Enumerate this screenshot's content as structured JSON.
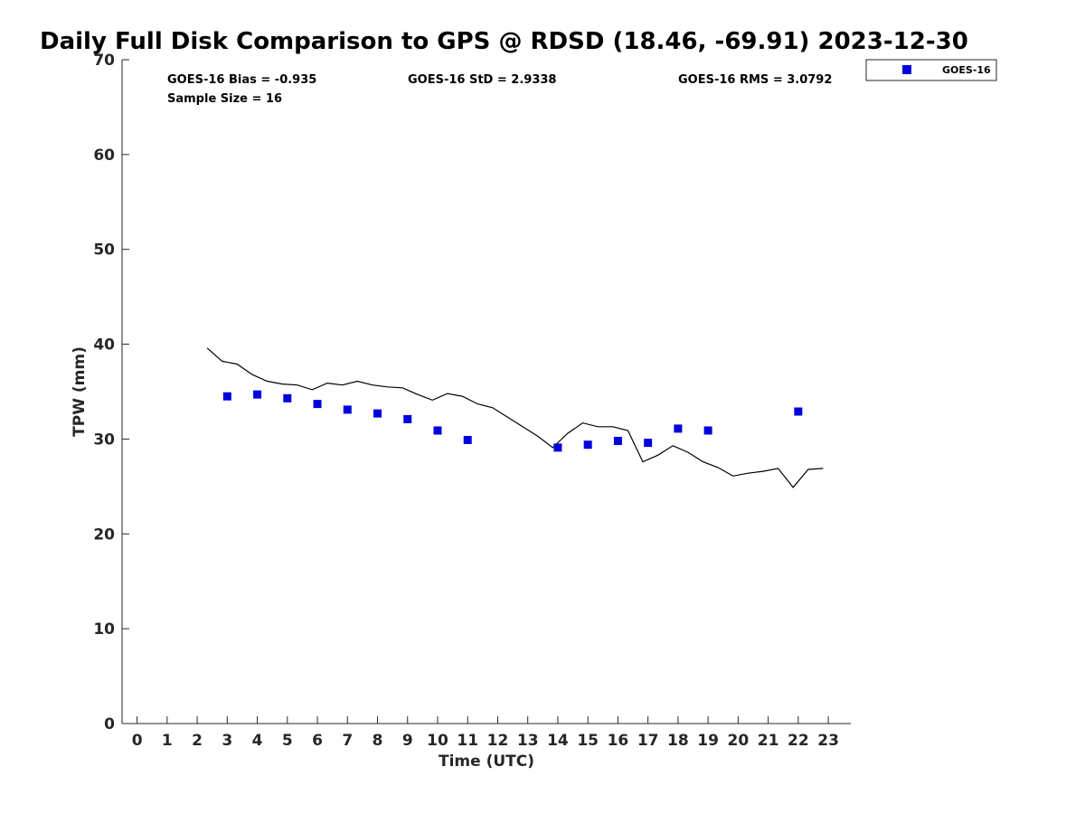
{
  "chart_data": {
    "type": "scatter",
    "title": "Daily Full Disk Comparison to GPS @ RDSD (18.46, -69.91) 2023-12-30",
    "xlabel": "Time (UTC)",
    "ylabel": "TPW (mm)",
    "xlim": [
      -0.5,
      23.75
    ],
    "ylim": [
      0,
      70
    ],
    "xticks": [
      0,
      1,
      2,
      3,
      4,
      5,
      6,
      7,
      8,
      9,
      10,
      11,
      12,
      13,
      14,
      15,
      16,
      17,
      18,
      19,
      20,
      21,
      22,
      23
    ],
    "yticks": [
      0,
      10,
      20,
      30,
      40,
      50,
      60,
      70
    ],
    "grid": false,
    "legend_position": "top-right, outside plot",
    "stats": {
      "bias": "GOES-16 Bias = -0.935",
      "std": "GOES-16 StD = 2.9338",
      "rms": "GOES-16 RMS = 3.0792",
      "sample_size": "Sample Size = 16"
    },
    "series": [
      {
        "name": "GOES-16",
        "style": "marker",
        "marker": "square",
        "color": "#0000dd",
        "x": [
          3,
          4,
          5,
          6,
          7,
          8,
          9,
          10,
          11,
          14,
          15,
          16,
          17,
          18,
          19,
          22
        ],
        "y": [
          34.5,
          34.7,
          34.3,
          33.7,
          33.1,
          32.7,
          32.1,
          30.9,
          29.9,
          29.1,
          29.4,
          29.8,
          29.6,
          31.1,
          30.9,
          32.9
        ]
      },
      {
        "style": "line",
        "color": "#000000",
        "x": [
          2.33,
          2.83,
          3.33,
          3.83,
          4.33,
          4.83,
          5.33,
          5.83,
          6.33,
          6.83,
          7.33,
          7.83,
          8.33,
          8.83,
          9.33,
          9.83,
          10.33,
          10.83,
          11.33,
          11.83,
          12.33,
          12.83,
          13.33,
          13.83,
          14.33,
          14.83,
          15.33,
          15.83,
          16.33,
          16.83,
          17.33,
          17.83,
          18.33,
          18.83,
          19.33,
          19.83,
          20.33,
          20.83,
          21.33,
          21.83,
          22.33,
          22.83
        ],
        "y": [
          39.6,
          38.2,
          37.9,
          36.8,
          36.1,
          35.8,
          35.7,
          35.2,
          35.9,
          35.7,
          36.1,
          35.7,
          35.5,
          35.4,
          34.7,
          34.1,
          34.8,
          34.5,
          33.7,
          33.3,
          32.3,
          31.3,
          30.3,
          29.1,
          30.6,
          31.7,
          31.3,
          31.3,
          30.9,
          27.6,
          28.3,
          29.3,
          28.6,
          27.6,
          27.0,
          26.1,
          26.4,
          26.6,
          26.9,
          24.9,
          26.8,
          26.9
        ]
      }
    ]
  }
}
